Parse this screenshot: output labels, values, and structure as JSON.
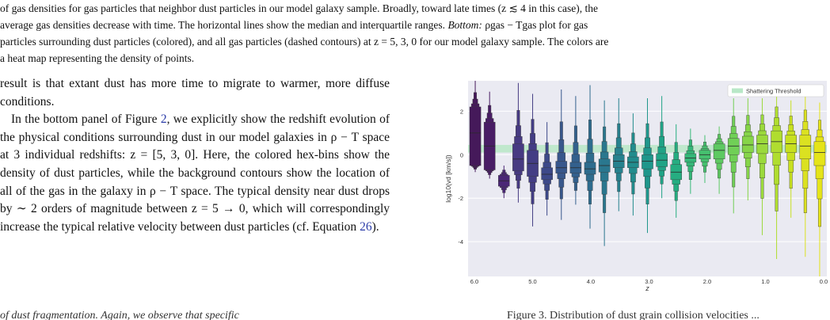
{
  "caption": {
    "p1": "of gas densities for gas particles that neighbor dust particles in our model galaxy sample. Broadly, toward late times (z ≲ 4 in this case), the",
    "p2": "average gas densities decrease with time. The horizontal lines show the median and interquartile ranges.",
    "p2_em": "Bottom:",
    "p2_b": "ρgas − Tgas plot for gas",
    "p3": "particles surrounding dust particles (colored), and all gas particles (dashed contours) at z = 5, 3, 0 for our model galaxy sample. The colors are",
    "p4": "a heat map representing the density of points."
  },
  "body": {
    "para1": "result is that extant dust has more time to migrate to warmer, more diffuse conditions.",
    "para2_a": "In the bottom panel of Figure",
    "para2_fig": "2",
    "para2_b": ", we explicitly show the redshift evolution of the physical conditions surrounding dust in our model galaxies in ρ − T space at 3 individual redshifts: z = [5, 3, 0]. Here, the colored hex-bins show the density of dust particles, while the background contours show the location of all of the gas in the galaxy in ρ − T space. The typical density near dust drops by ∼ 2 orders of magnitude between z = 5 → 0, which will correspondingly increase the typical relative velocity between dust particles (cf. Equation",
    "para2_eq": "26",
    "para2_c": ")."
  },
  "bottom": {
    "left": "of dust fragmentation. Again, we observe that specific",
    "right": "Figure 3. Distribution of dust grain collision velocities ..."
  },
  "chart_data": {
    "type": "boxen",
    "title": "",
    "xlabel": "z",
    "ylabel": "log10(vd [km/s])",
    "x_ticks": [
      "6.0",
      "5.0",
      "4.0",
      "3.0",
      "2.0",
      "1.0",
      "0.0"
    ],
    "y_ticks": [
      2,
      0,
      -2,
      -4
    ],
    "ylim": [
      -5.6,
      3.4
    ],
    "legend": {
      "label": "Shattering Threshold",
      "position": "top-right",
      "color": "#b9e8c7"
    },
    "threshold_band": [
      0.1,
      0.45
    ],
    "grid": true,
    "series": [
      {
        "median": 1.0,
        "q1": -0.5,
        "q3": 2.2,
        "min": -0.8,
        "max": 3.4,
        "color": "#45195a"
      },
      {
        "median": 0.4,
        "q1": -0.7,
        "q3": 1.5,
        "min": -1.1,
        "max": 2.9,
        "color": "#491d65"
      },
      {
        "median": -1.2,
        "q1": -1.45,
        "q3": -0.95,
        "min": -2.0,
        "max": -0.5,
        "color": "#4b2776"
      },
      {
        "median": -0.2,
        "q1": -0.75,
        "q3": 0.5,
        "min": -2.2,
        "max": 3.3,
        "color": "#473a82"
      },
      {
        "median": -0.4,
        "q1": -1.0,
        "q3": 0.2,
        "min": -3.3,
        "max": 2.8,
        "color": "#433d84"
      },
      {
        "median": -0.9,
        "q1": -1.15,
        "q3": -0.6,
        "min": -2.8,
        "max": 1.5,
        "color": "#3d4989"
      },
      {
        "median": -0.6,
        "q1": -0.85,
        "q3": -0.3,
        "min": -3.0,
        "max": 3.0,
        "color": "#38578c"
      },
      {
        "median": -0.6,
        "q1": -0.85,
        "q3": -0.35,
        "min": -2.3,
        "max": 2.7,
        "color": "#33608d"
      },
      {
        "median": -0.65,
        "q1": -0.9,
        "q3": -0.35,
        "min": -3.4,
        "max": 3.2,
        "color": "#2e6c8e"
      },
      {
        "median": -0.5,
        "q1": -0.8,
        "q3": -0.2,
        "min": -4.2,
        "max": 2.5,
        "color": "#2a778e"
      },
      {
        "median": -0.3,
        "q1": -0.6,
        "q3": 0.0,
        "min": -2.6,
        "max": 2.6,
        "color": "#26818e"
      },
      {
        "median": -0.35,
        "q1": -0.6,
        "q3": -0.1,
        "min": -2.8,
        "max": 1.9,
        "color": "#228c8d"
      },
      {
        "median": -0.3,
        "q1": -0.65,
        "q3": 0.0,
        "min": -3.6,
        "max": 2.6,
        "color": "#1f968b"
      },
      {
        "median": -0.25,
        "q1": -0.55,
        "q3": 0.05,
        "min": -2.0,
        "max": 2.7,
        "color": "#20a386"
      },
      {
        "median": -0.8,
        "q1": -1.15,
        "q3": -0.45,
        "min": -2.9,
        "max": 1.4,
        "color": "#26ad81"
      },
      {
        "median": -0.15,
        "q1": -0.35,
        "q3": 0.05,
        "min": -1.8,
        "max": 1.2,
        "color": "#35b779"
      },
      {
        "median": 0.0,
        "q1": -0.2,
        "q3": 0.2,
        "min": -1.3,
        "max": 0.9,
        "color": "#46c06f"
      },
      {
        "median": 0.2,
        "q1": -0.2,
        "q3": 0.5,
        "min": -1.8,
        "max": 1.3,
        "color": "#5ec962"
      },
      {
        "median": 0.4,
        "q1": 0.0,
        "q3": 0.75,
        "min": -2.7,
        "max": 2.6,
        "color": "#70cf57"
      },
      {
        "median": 0.45,
        "q1": 0.1,
        "q3": 0.85,
        "min": -2.1,
        "max": 2.6,
        "color": "#86d549"
      },
      {
        "median": 0.5,
        "q1": 0.05,
        "q3": 0.9,
        "min": -3.7,
        "max": 2.6,
        "color": "#9bd93c"
      },
      {
        "median": 0.6,
        "q1": 0.1,
        "q3": 1.1,
        "min": -4.8,
        "max": 3.1,
        "color": "#b0dd2f"
      },
      {
        "median": 0.5,
        "q1": 0.1,
        "q3": 0.9,
        "min": -2.9,
        "max": 2.5,
        "color": "#c8e020"
      },
      {
        "median": 0.4,
        "q1": -0.2,
        "q3": 0.9,
        "min": -4.7,
        "max": 3.0,
        "color": "#dbe121"
      },
      {
        "median": 0.1,
        "q1": -0.5,
        "q3": 0.6,
        "min": -5.6,
        "max": 2.4,
        "color": "#e5e419"
      }
    ]
  }
}
